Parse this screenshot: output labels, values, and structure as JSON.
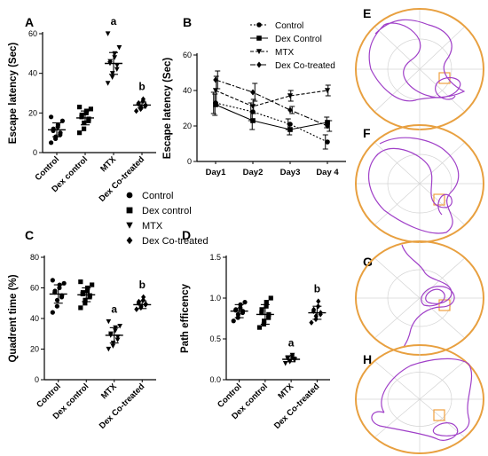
{
  "panel_labels": [
    "A",
    "B",
    "C",
    "D",
    "E",
    "F",
    "G",
    "H"
  ],
  "shared_legend": [
    {
      "symbol": "circle",
      "label": "Control"
    },
    {
      "symbol": "square",
      "label": "Dex control"
    },
    {
      "symbol": "triangle-down",
      "label": "MTX"
    },
    {
      "symbol": "diamond",
      "label": "Dex Co-treated"
    }
  ],
  "chart_data": [
    {
      "panel": "A",
      "type": "scatter",
      "ylabel": "Escape latency (Sec)",
      "categories": [
        "Control",
        "Dex control",
        "MTX",
        "Dex Co-treated"
      ],
      "ylim": [
        0,
        60
      ],
      "yticks": [
        0,
        20,
        40,
        60
      ],
      "means": [
        11.5,
        17.5,
        45,
        24
      ],
      "sd": [
        3.5,
        3.5,
        5.5,
        1.5
      ],
      "points": [
        [
          5,
          7,
          8,
          9,
          10,
          11,
          12,
          13,
          14,
          16,
          18
        ],
        [
          10,
          12,
          15,
          16,
          17,
          18,
          19,
          20,
          21,
          22,
          23
        ],
        [
          35,
          38,
          40,
          42,
          44,
          45,
          46,
          48,
          50,
          53,
          60
        ],
        [
          21,
          22,
          23,
          23.5,
          24,
          24.5,
          25,
          26,
          27
        ]
      ],
      "significance": [
        "",
        "",
        "a",
        "b"
      ]
    },
    {
      "panel": "B",
      "type": "line",
      "ylabel": "Escape latency (Sec)",
      "x": [
        "Day1",
        "Day2",
        "Day3",
        "Day 4"
      ],
      "ylim": [
        0,
        60
      ],
      "yticks": [
        0,
        20,
        40,
        60
      ],
      "series": [
        {
          "name": "Control",
          "marker": "circle",
          "values": [
            33,
            28,
            21,
            11
          ],
          "sd": [
            6,
            5,
            3,
            4
          ]
        },
        {
          "name": "Dex Control",
          "marker": "square",
          "values": [
            32,
            23,
            18,
            22
          ],
          "sd": [
            6,
            5,
            3,
            3
          ]
        },
        {
          "name": "MTX",
          "marker": "triangle-down",
          "values": [
            40,
            31,
            37,
            40
          ],
          "sd": [
            8,
            4,
            3,
            3
          ]
        },
        {
          "name": "Dex Co-treated",
          "marker": "diamond",
          "values": [
            46,
            39,
            29,
            20
          ],
          "sd": [
            5,
            5,
            2,
            3
          ]
        }
      ]
    },
    {
      "panel": "C",
      "type": "scatter",
      "ylabel": "Quadrent time (%)",
      "categories": [
        "Control",
        "Dex control",
        "MTX",
        "Dex Co-treated"
      ],
      "ylim": [
        0,
        80
      ],
      "yticks": [
        0,
        20,
        40,
        60,
        80
      ],
      "means": [
        56,
        55.5,
        29,
        49
      ],
      "sd": [
        6,
        4.5,
        5,
        2.5
      ],
      "points": [
        [
          44,
          48,
          52,
          54,
          55,
          57,
          58,
          60,
          62,
          63,
          65
        ],
        [
          47,
          50,
          52,
          54,
          55,
          56,
          57,
          58,
          60,
          62,
          64
        ],
        [
          20,
          22,
          24,
          26,
          28,
          29,
          30,
          32,
          34,
          35,
          38
        ],
        [
          46,
          47,
          48,
          49,
          49.5,
          50,
          51,
          52,
          54
        ]
      ],
      "significance": [
        "",
        "",
        "a",
        "b"
      ]
    },
    {
      "panel": "D",
      "type": "scatter",
      "ylabel": "Path efficency",
      "categories": [
        "Control",
        "Dex control",
        "MTX",
        "Dex Co-treated"
      ],
      "ylim": [
        0,
        1.5
      ],
      "yticks": [
        0.0,
        0.5,
        1.0,
        1.5
      ],
      "means": [
        0.84,
        0.8,
        0.25,
        0.82
      ],
      "sd": [
        0.08,
        0.12,
        0.03,
        0.08
      ],
      "points": [
        [
          0.72,
          0.76,
          0.8,
          0.82,
          0.84,
          0.85,
          0.86,
          0.88,
          0.92,
          0.95
        ],
        [
          0.64,
          0.68,
          0.72,
          0.76,
          0.8,
          0.82,
          0.86,
          0.9,
          0.95,
          1.0
        ],
        [
          0.2,
          0.22,
          0.23,
          0.24,
          0.25,
          0.26,
          0.27,
          0.28,
          0.3
        ],
        [
          0.7,
          0.74,
          0.78,
          0.8,
          0.82,
          0.84,
          0.86,
          0.9,
          0.96
        ]
      ],
      "significance": [
        "",
        "",
        "a",
        "b"
      ]
    }
  ],
  "track_images": [
    {
      "panel": "E",
      "platform_quadrant": "right-center"
    },
    {
      "panel": "F",
      "platform_quadrant": "lower-right"
    },
    {
      "panel": "G",
      "platform_quadrant": "lower-right"
    },
    {
      "panel": "H",
      "platform_quadrant": "lower-right"
    }
  ],
  "colors": {
    "pool": "#e8a040",
    "track": "#a040c8",
    "grid": "#d4d4d4",
    "platform": "#f0a040",
    "axis": "#000000"
  }
}
